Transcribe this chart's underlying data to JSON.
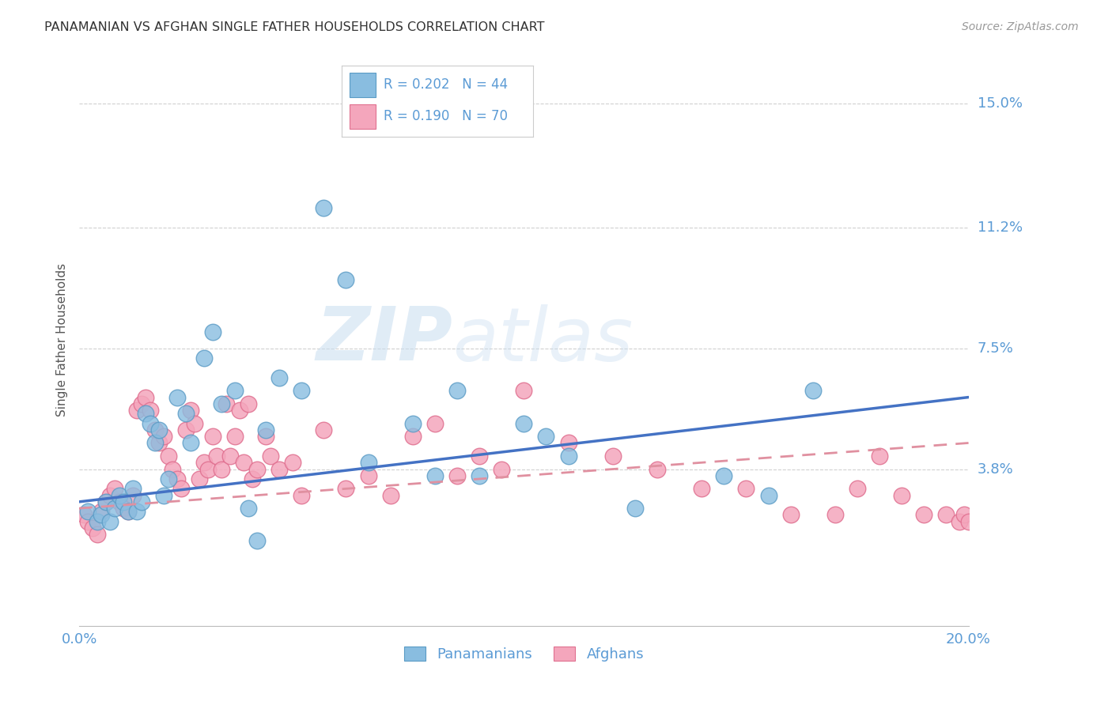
{
  "title": "PANAMANIAN VS AFGHAN SINGLE FATHER HOUSEHOLDS CORRELATION CHART",
  "source": "Source: ZipAtlas.com",
  "ylabel": "Single Father Households",
  "watermark_zip": "ZIP",
  "watermark_atlas": "atlas",
  "right_ytick_labels": [
    "15.0%",
    "11.2%",
    "7.5%",
    "3.8%"
  ],
  "right_ytick_values": [
    0.15,
    0.112,
    0.075,
    0.038
  ],
  "xlim": [
    0.0,
    0.2
  ],
  "ylim": [
    -0.01,
    0.165
  ],
  "pan_color": "#89bde0",
  "afg_color": "#f4a6bc",
  "pan_edge_color": "#5a9bc5",
  "afg_edge_color": "#e07090",
  "pan_line_color": "#4472c4",
  "afg_line_color": "#e090a0",
  "legend_r_pan": "0.202",
  "legend_n_pan": "44",
  "legend_r_afg": "0.190",
  "legend_n_afg": "70",
  "pan_scatter_x": [
    0.002,
    0.004,
    0.005,
    0.006,
    0.007,
    0.008,
    0.009,
    0.01,
    0.011,
    0.012,
    0.013,
    0.014,
    0.015,
    0.016,
    0.017,
    0.018,
    0.019,
    0.02,
    0.022,
    0.024,
    0.025,
    0.028,
    0.03,
    0.032,
    0.035,
    0.038,
    0.04,
    0.042,
    0.045,
    0.05,
    0.055,
    0.06,
    0.065,
    0.075,
    0.08,
    0.085,
    0.09,
    0.1,
    0.105,
    0.11,
    0.125,
    0.145,
    0.155,
    0.165
  ],
  "pan_scatter_y": [
    0.025,
    0.022,
    0.024,
    0.028,
    0.022,
    0.026,
    0.03,
    0.028,
    0.025,
    0.032,
    0.025,
    0.028,
    0.055,
    0.052,
    0.046,
    0.05,
    0.03,
    0.035,
    0.06,
    0.055,
    0.046,
    0.072,
    0.08,
    0.058,
    0.062,
    0.026,
    0.016,
    0.05,
    0.066,
    0.062,
    0.118,
    0.096,
    0.04,
    0.052,
    0.036,
    0.062,
    0.036,
    0.052,
    0.048,
    0.042,
    0.026,
    0.036,
    0.03,
    0.062
  ],
  "afg_scatter_x": [
    0.001,
    0.002,
    0.003,
    0.004,
    0.005,
    0.006,
    0.007,
    0.008,
    0.009,
    0.01,
    0.011,
    0.012,
    0.013,
    0.014,
    0.015,
    0.016,
    0.017,
    0.018,
    0.019,
    0.02,
    0.021,
    0.022,
    0.023,
    0.024,
    0.025,
    0.026,
    0.027,
    0.028,
    0.029,
    0.03,
    0.031,
    0.032,
    0.033,
    0.034,
    0.035,
    0.036,
    0.037,
    0.038,
    0.039,
    0.04,
    0.042,
    0.043,
    0.045,
    0.048,
    0.05,
    0.055,
    0.06,
    0.065,
    0.07,
    0.075,
    0.08,
    0.085,
    0.09,
    0.095,
    0.1,
    0.11,
    0.12,
    0.13,
    0.14,
    0.15,
    0.16,
    0.17,
    0.175,
    0.18,
    0.185,
    0.19,
    0.195,
    0.198,
    0.199,
    0.2
  ],
  "afg_scatter_y": [
    0.024,
    0.022,
    0.02,
    0.018,
    0.025,
    0.028,
    0.03,
    0.032,
    0.028,
    0.026,
    0.025,
    0.03,
    0.056,
    0.058,
    0.06,
    0.056,
    0.05,
    0.046,
    0.048,
    0.042,
    0.038,
    0.035,
    0.032,
    0.05,
    0.056,
    0.052,
    0.035,
    0.04,
    0.038,
    0.048,
    0.042,
    0.038,
    0.058,
    0.042,
    0.048,
    0.056,
    0.04,
    0.058,
    0.035,
    0.038,
    0.048,
    0.042,
    0.038,
    0.04,
    0.03,
    0.05,
    0.032,
    0.036,
    0.03,
    0.048,
    0.052,
    0.036,
    0.042,
    0.038,
    0.062,
    0.046,
    0.042,
    0.038,
    0.032,
    0.032,
    0.024,
    0.024,
    0.032,
    0.042,
    0.03,
    0.024,
    0.024,
    0.022,
    0.024,
    0.022
  ],
  "pan_line_x0": 0.0,
  "pan_line_x1": 0.2,
  "pan_line_y0": 0.028,
  "pan_line_y1": 0.06,
  "afg_line_x0": 0.0,
  "afg_line_x1": 0.2,
  "afg_line_y0": 0.026,
  "afg_line_y1": 0.046,
  "title_color": "#333333",
  "source_color": "#999999",
  "axis_label_color": "#5b9bd5",
  "tick_label_color": "#5b9bd5",
  "grid_color": "#d0d0d0",
  "background_color": "#ffffff",
  "legend_label_color": "#5b9bd5"
}
